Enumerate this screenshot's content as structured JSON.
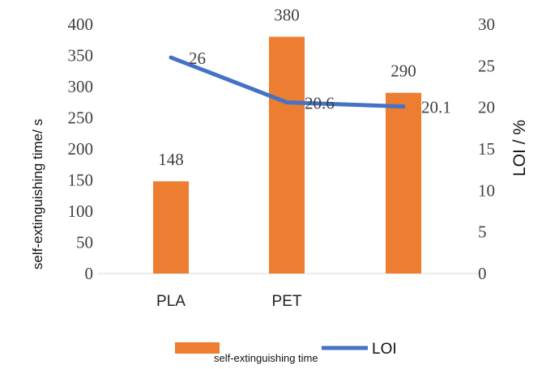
{
  "chart_data": {
    "type": "bar",
    "title": "",
    "categories": [
      "PLA",
      "PET",
      ""
    ],
    "series": [
      {
        "name": "self-extinguishing time",
        "kind": "bar",
        "axis": "left",
        "values": [
          148,
          380,
          290
        ],
        "labels": [
          "148",
          "380",
          "290"
        ],
        "color": "#ED7D31"
      },
      {
        "name": "LOI",
        "kind": "line",
        "axis": "right",
        "values": [
          26,
          20.6,
          20.1
        ],
        "labels": [
          "26",
          "20.6",
          "20.1"
        ],
        "color": "#4472C4"
      }
    ],
    "ylabel_left": "self-extinguishing time/  s",
    "ylabel_right": "LOI / %",
    "ylim_left": [
      0,
      400
    ],
    "ylim_right": [
      0,
      30
    ],
    "yticks_left": [
      "0",
      "50",
      "100",
      "150",
      "200",
      "250",
      "300",
      "350",
      "400"
    ],
    "yticks_right": [
      "0",
      "5",
      "10",
      "15",
      "20",
      "25",
      "30"
    ],
    "grid": false,
    "legend_position": "bottom"
  }
}
